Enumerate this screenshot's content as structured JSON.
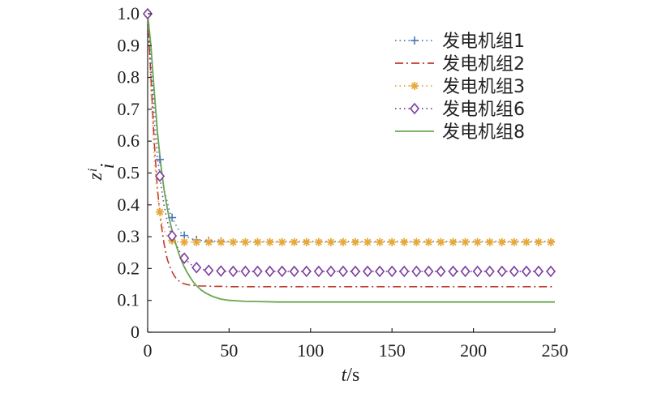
{
  "chart_data": {
    "type": "line",
    "xlabel_italic": "t",
    "xlabel_unit": "/s",
    "ylabel_main": "z",
    "ylabel_sub": "i",
    "ylabel_sup": "i",
    "xlim": [
      0,
      250
    ],
    "ylim": [
      0,
      1.0
    ],
    "x_ticks": [
      "0",
      "50",
      "100",
      "150",
      "200",
      "250"
    ],
    "y_ticks": [
      "0",
      "0.1",
      "0.2",
      "0.3",
      "0.4",
      "0.5",
      "0.6",
      "0.7",
      "0.8",
      "0.9",
      "1.0"
    ],
    "x_tick_values": [
      0,
      50,
      100,
      150,
      200,
      250
    ],
    "y_tick_values": [
      0,
      0.1,
      0.2,
      0.3,
      0.4,
      0.5,
      0.6,
      0.7,
      0.8,
      0.9,
      1.0
    ],
    "legend_position": "top-right",
    "grid": false,
    "series": [
      {
        "name": "发电机组1",
        "color": "#4a7ab5",
        "line_style": "dotted",
        "marker": "plus",
        "x": [
          0,
          2,
          4,
          6,
          8,
          10,
          12,
          14,
          16,
          18,
          20,
          22,
          24,
          26,
          28,
          30,
          33,
          36,
          40,
          45,
          50,
          60,
          80,
          100,
          150,
          200,
          250
        ],
        "y": [
          1.0,
          0.84,
          0.72,
          0.61,
          0.52,
          0.45,
          0.41,
          0.37,
          0.35,
          0.33,
          0.315,
          0.305,
          0.3,
          0.295,
          0.292,
          0.29,
          0.288,
          0.287,
          0.286,
          0.285,
          0.285,
          0.285,
          0.285,
          0.285,
          0.285,
          0.285,
          0.285
        ]
      },
      {
        "name": "发电机组2",
        "color": "#c0392b",
        "line_style": "dashdot",
        "marker": "none",
        "x": [
          0,
          2,
          4,
          6,
          8,
          10,
          12,
          14,
          16,
          18,
          20,
          22,
          24,
          26,
          28,
          30,
          33,
          36,
          40,
          45,
          50,
          60,
          80,
          100,
          150,
          200,
          250
        ],
        "y": [
          1.0,
          0.8,
          0.6,
          0.45,
          0.35,
          0.28,
          0.23,
          0.2,
          0.18,
          0.165,
          0.158,
          0.153,
          0.15,
          0.148,
          0.147,
          0.146,
          0.145,
          0.145,
          0.144,
          0.144,
          0.143,
          0.143,
          0.143,
          0.143,
          0.143,
          0.143,
          0.143
        ]
      },
      {
        "name": "发电机组3",
        "color": "#e8a838",
        "line_style": "dotted",
        "marker": "asterisk",
        "x": [
          0,
          2,
          4,
          6,
          8,
          10,
          12,
          14,
          16,
          18,
          20,
          22,
          24,
          26,
          28,
          30,
          33,
          36,
          40,
          45,
          50,
          60,
          80,
          100,
          150,
          200,
          250
        ],
        "y": [
          1.0,
          0.75,
          0.55,
          0.43,
          0.36,
          0.32,
          0.3,
          0.29,
          0.286,
          0.284,
          0.283,
          0.283,
          0.283,
          0.283,
          0.283,
          0.283,
          0.283,
          0.283,
          0.283,
          0.283,
          0.283,
          0.283,
          0.283,
          0.283,
          0.283,
          0.283,
          0.283
        ]
      },
      {
        "name": "发电机组6",
        "color": "#7b3fa0",
        "line_style": "dotted",
        "marker": "diamond",
        "x": [
          0,
          2,
          4,
          6,
          8,
          10,
          12,
          14,
          16,
          18,
          20,
          22,
          24,
          26,
          28,
          30,
          33,
          36,
          40,
          45,
          50,
          60,
          80,
          100,
          150,
          200,
          250
        ],
        "y": [
          1.0,
          0.82,
          0.66,
          0.55,
          0.47,
          0.4,
          0.35,
          0.315,
          0.29,
          0.27,
          0.25,
          0.235,
          0.225,
          0.215,
          0.208,
          0.203,
          0.198,
          0.195,
          0.193,
          0.192,
          0.191,
          0.191,
          0.191,
          0.191,
          0.191,
          0.191,
          0.191
        ]
      },
      {
        "name": "发电机组8",
        "color": "#6aa84f",
        "line_style": "solid",
        "marker": "none",
        "x": [
          0,
          2,
          4,
          6,
          8,
          10,
          12,
          14,
          16,
          18,
          20,
          22,
          24,
          26,
          28,
          30,
          33,
          36,
          40,
          45,
          50,
          60,
          70,
          80,
          100,
          150,
          200,
          250
        ],
        "y": [
          1.0,
          0.9,
          0.76,
          0.63,
          0.53,
          0.45,
          0.39,
          0.34,
          0.3,
          0.265,
          0.235,
          0.21,
          0.19,
          0.173,
          0.158,
          0.146,
          0.132,
          0.122,
          0.112,
          0.104,
          0.1,
          0.097,
          0.096,
          0.095,
          0.095,
          0.095,
          0.095,
          0.095
        ]
      }
    ],
    "marker_x": [
      0,
      7.5,
      15,
      22.5,
      30,
      37.5,
      45,
      52.5,
      60,
      67.5,
      75,
      82.5,
      90,
      97.5,
      105,
      112.5,
      120,
      127.5,
      135,
      142.5,
      150,
      157.5,
      165,
      172.5,
      180,
      187.5,
      195,
      202.5,
      210,
      217.5,
      225,
      232.5,
      240,
      247.5
    ]
  }
}
